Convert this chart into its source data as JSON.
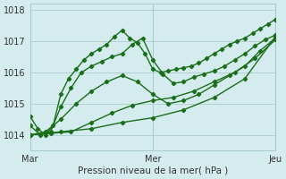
{
  "title": "",
  "xlabel": "Pression niveau de la mer( hPa )",
  "ylim": [
    1013.5,
    1018.2
  ],
  "xlim": [
    0,
    96
  ],
  "yticks": [
    1014,
    1015,
    1016,
    1017,
    1018
  ],
  "xtick_positions": [
    0,
    48,
    96
  ],
  "xtick_labels": [
    "Mar",
    "Mer",
    "Jeu"
  ],
  "bg_color": "#d4ecee",
  "grid_color": "#aacdd0",
  "line_color": "#1a6e1a",
  "series": [
    {
      "x": [
        0,
        3,
        6,
        9,
        12,
        15,
        18,
        21,
        24,
        27,
        30,
        33,
        36,
        39,
        42,
        45,
        48,
        51,
        54,
        57,
        60,
        63,
        66,
        69,
        72,
        75,
        78,
        81,
        84,
        87,
        90,
        93,
        96
      ],
      "y": [
        1014.6,
        1014.2,
        1014.0,
        1014.3,
        1015.3,
        1015.8,
        1016.1,
        1016.4,
        1016.6,
        1016.75,
        1016.9,
        1017.15,
        1017.35,
        1017.1,
        1016.95,
        1016.6,
        1016.1,
        1016.0,
        1016.05,
        1016.1,
        1016.15,
        1016.2,
        1016.3,
        1016.45,
        1016.6,
        1016.75,
        1016.9,
        1017.0,
        1017.1,
        1017.25,
        1017.4,
        1017.55,
        1017.7
      ]
    },
    {
      "x": [
        0,
        4,
        8,
        12,
        16,
        20,
        24,
        28,
        32,
        36,
        40,
        44,
        48,
        52,
        56,
        60,
        64,
        68,
        72,
        76,
        80,
        84,
        88,
        92,
        96
      ],
      "y": [
        1014.3,
        1014.0,
        1014.1,
        1014.9,
        1015.5,
        1016.0,
        1016.2,
        1016.35,
        1016.5,
        1016.6,
        1016.9,
        1017.1,
        1016.4,
        1015.95,
        1015.65,
        1015.7,
        1015.85,
        1015.95,
        1016.05,
        1016.2,
        1016.4,
        1016.6,
        1016.85,
        1017.05,
        1017.2
      ]
    },
    {
      "x": [
        0,
        6,
        12,
        18,
        24,
        30,
        36,
        42,
        48,
        54,
        60,
        66,
        72,
        78,
        84,
        90,
        96
      ],
      "y": [
        1014.0,
        1014.1,
        1014.5,
        1015.0,
        1015.4,
        1015.7,
        1015.9,
        1015.7,
        1015.3,
        1015.0,
        1015.1,
        1015.3,
        1015.6,
        1015.9,
        1016.2,
        1016.7,
        1017.1
      ]
    },
    {
      "x": [
        0,
        8,
        16,
        24,
        32,
        40,
        48,
        56,
        64,
        72,
        80,
        88,
        96
      ],
      "y": [
        1014.0,
        1014.05,
        1014.1,
        1014.4,
        1014.7,
        1014.95,
        1015.1,
        1015.2,
        1015.4,
        1015.7,
        1016.0,
        1016.45,
        1017.05
      ]
    },
    {
      "x": [
        0,
        12,
        24,
        36,
        48,
        60,
        72,
        84,
        96
      ],
      "y": [
        1014.0,
        1014.1,
        1014.2,
        1014.4,
        1014.55,
        1014.8,
        1015.2,
        1015.8,
        1017.15
      ]
    }
  ],
  "marker": "D",
  "markersize": 2.2,
  "linewidth": 1.0
}
